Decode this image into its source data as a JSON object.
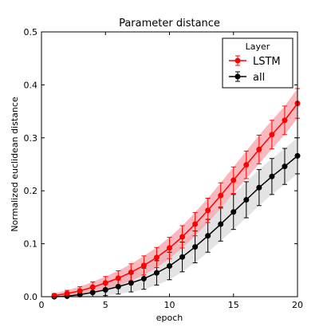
{
  "chart_data": {
    "type": "line",
    "title": "Parameter distance",
    "xlabel": "epoch",
    "ylabel": "Normalized euclidean distance",
    "xlim": [
      0,
      20
    ],
    "ylim": [
      0,
      0.5
    ],
    "x_ticks": [
      0,
      5,
      10,
      15,
      20
    ],
    "y_ticks": [
      0.0,
      0.1,
      0.2,
      0.3,
      0.4,
      0.5
    ],
    "legend": {
      "title": "Layer",
      "position": "top-right"
    },
    "x": [
      1,
      2,
      3,
      4,
      5,
      6,
      7,
      8,
      9,
      10,
      11,
      12,
      13,
      14,
      15,
      16,
      17,
      18,
      19,
      20
    ],
    "series": [
      {
        "name": "LSTM",
        "color": "#ff0000",
        "band_color": "#f5a0a8",
        "values": [
          0.002,
          0.006,
          0.011,
          0.018,
          0.026,
          0.035,
          0.046,
          0.059,
          0.074,
          0.092,
          0.113,
          0.137,
          0.163,
          0.191,
          0.22,
          0.249,
          0.278,
          0.306,
          0.333,
          0.365
        ],
        "error": [
          0.004,
          0.006,
          0.008,
          0.01,
          0.012,
          0.014,
          0.016,
          0.018,
          0.019,
          0.02,
          0.021,
          0.022,
          0.023,
          0.024,
          0.025,
          0.026,
          0.027,
          0.027,
          0.027,
          0.028
        ]
      },
      {
        "name": "all",
        "color": "#000000",
        "band_color": "#cccccc",
        "values": [
          0.0,
          0.001,
          0.004,
          0.008,
          0.013,
          0.019,
          0.026,
          0.034,
          0.045,
          0.058,
          0.075,
          0.094,
          0.115,
          0.137,
          0.16,
          0.183,
          0.206,
          0.227,
          0.246,
          0.266
        ],
        "error": [
          0.002,
          0.004,
          0.006,
          0.008,
          0.011,
          0.014,
          0.017,
          0.02,
          0.023,
          0.026,
          0.028,
          0.03,
          0.031,
          0.032,
          0.033,
          0.034,
          0.034,
          0.034,
          0.034,
          0.034
        ]
      }
    ]
  }
}
